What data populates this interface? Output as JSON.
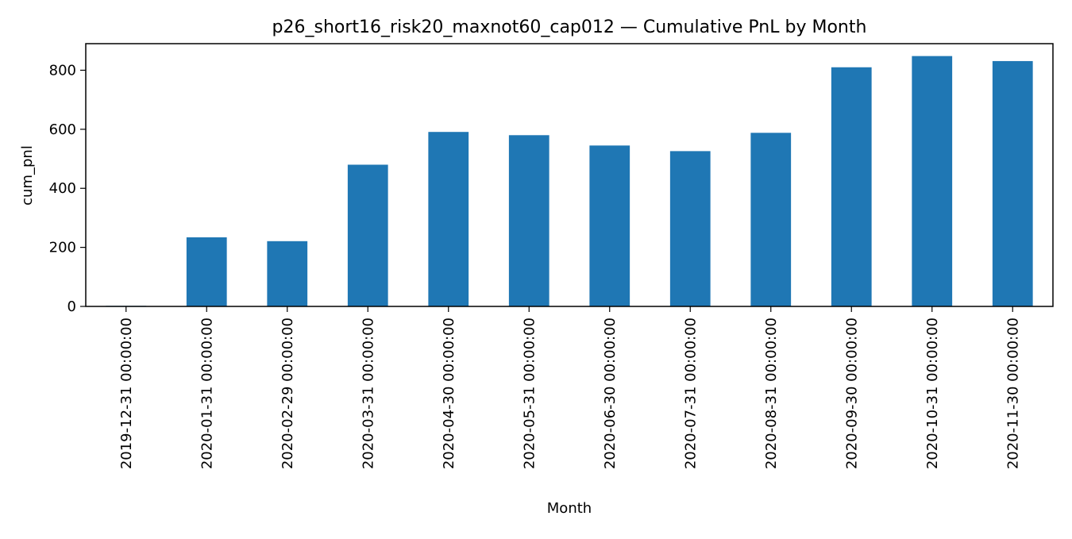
{
  "chart_data": {
    "type": "bar",
    "title": "p26_short16_risk20_maxnot60_cap012 — Cumulative PnL by Month",
    "xlabel": "Month",
    "ylabel": "cum_pnl",
    "categories": [
      "2019-12-31 00:00:00",
      "2020-01-31 00:00:00",
      "2020-02-29 00:00:00",
      "2020-03-31 00:00:00",
      "2020-04-30 00:00:00",
      "2020-05-31 00:00:00",
      "2020-06-30 00:00:00",
      "2020-07-31 00:00:00",
      "2020-08-31 00:00:00",
      "2020-09-30 00:00:00",
      "2020-10-31 00:00:00",
      "2020-11-30 00:00:00"
    ],
    "values": [
      2,
      234,
      221,
      480,
      591,
      580,
      545,
      526,
      588,
      810,
      848,
      831
    ],
    "ylim": [
      0,
      890
    ],
    "yticks": [
      0,
      200,
      400,
      600,
      800
    ],
    "grid": false,
    "bar_color": "#1f77b4"
  }
}
